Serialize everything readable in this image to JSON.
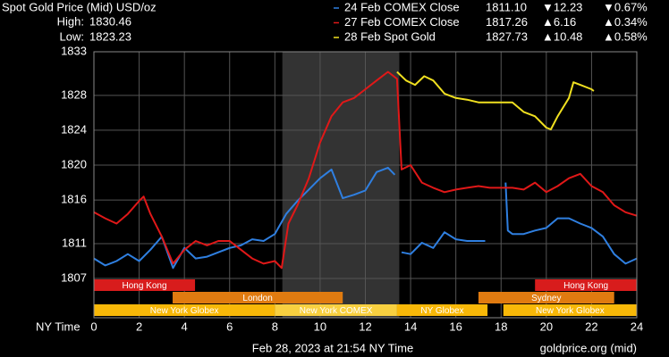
{
  "chart_data": {
    "type": "line",
    "title": "Spot Gold Price (Mid) USD/oz",
    "stats": [
      {
        "label": "High:",
        "value": 1830.46
      },
      {
        "label": "Low:",
        "value": 1823.23
      }
    ],
    "stats_color": "#f0e030",
    "x_label": "NY Time",
    "xlim": [
      0,
      24
    ],
    "xticks": [
      0,
      2,
      4,
      6,
      8,
      10,
      12,
      14,
      16,
      18,
      20,
      22,
      24
    ],
    "ylim": [
      1802.5,
      1833
    ],
    "yticks": [
      1833,
      1828,
      1824,
      1820,
      1816,
      1811,
      1807
    ],
    "grid": true,
    "shaded_range": [
      8.33,
      13.5
    ],
    "session_rows": [
      [
        {
          "label": "Hong Kong",
          "color": "#d81c1c",
          "label_color": "#f4b0b0",
          "start": 0,
          "end": 4.47
        },
        {
          "label": "Hong Kong",
          "color": "#d81c1c",
          "label_color": "#f4b0b0",
          "start": 19.5,
          "end": 24
        }
      ],
      [
        {
          "label": "London",
          "color": "#e07b10",
          "label_color": "#5a2a00",
          "start": 3.48,
          "end": 11.0
        },
        {
          "label": "Sydney",
          "color": "#e07b10",
          "label_color": "#5a2a00",
          "start": 17.0,
          "end": 23.0
        }
      ],
      [
        {
          "label": "New York Globex",
          "color": "#f8b808",
          "label_color": "#5a3000",
          "start": 0,
          "end": 8.0
        },
        {
          "label": "New York COMEX",
          "color": "#f8d040",
          "label_color": "#5a3000",
          "start": 8.0,
          "end": 13.4
        },
        {
          "label": "NY Globex",
          "color": "#f8b808",
          "label_color": "#5a3000",
          "start": 13.4,
          "end": 17.4
        },
        {
          "label": "New York Globex",
          "color": "#f8b808",
          "label_color": "#5a3000",
          "start": 18.1,
          "end": 24
        }
      ]
    ],
    "series": [
      {
        "name": "24 Feb COMEX Close",
        "color": "#2f7fe0",
        "close_label": "1811.10",
        "change_label": "▼12.23",
        "change_pct_label": "▼0.67%",
        "change_color": "#e0201c",
        "x": [
          0,
          0.5,
          1,
          1.5,
          2,
          2.5,
          3,
          3.5,
          4,
          4.5,
          5,
          5.5,
          6,
          6.5,
          7,
          7.5,
          8,
          8.5,
          9,
          9.5,
          10,
          10.5,
          11,
          11.5,
          12,
          12.5,
          13,
          13.3,
          13.5,
          13.6,
          14,
          14.5,
          15,
          15.5,
          16,
          16.5,
          17.3,
          17.7,
          18.2,
          18.3,
          18.5,
          19,
          19.5,
          20,
          20.5,
          21,
          21.5,
          22,
          22.5,
          23,
          23.5,
          24
        ],
        "values": [
          1809.3,
          1808.5,
          1809.0,
          1809.8,
          1809.0,
          1810.3,
          1811.8,
          1808.2,
          1810.5,
          1809.3,
          1809.5,
          1810.0,
          1810.5,
          1810.8,
          1811.5,
          1811.3,
          1812.1,
          1814.4,
          1815.9,
          1817.2,
          1818.5,
          1819.5,
          1816.2,
          1816.6,
          1817.1,
          1819.2,
          1819.7,
          1818.9,
          null,
          1810.0,
          1809.8,
          1811.1,
          1810.5,
          1812.3,
          1811.5,
          1811.3,
          1811.3,
          null,
          1818.0,
          1812.5,
          1812.1,
          1812.1,
          1812.5,
          1812.8,
          1813.9,
          1813.9,
          1813.3,
          1812.8,
          1811.8,
          1809.8,
          1808.7,
          1809.3
        ]
      },
      {
        "name": "27 Feb COMEX Close",
        "color": "#e01818",
        "close_label": "1817.26",
        "change_label": "▲6.16",
        "change_pct_label": "▲0.34%",
        "change_color": "#22c022",
        "x": [
          0,
          0.5,
          1,
          1.5,
          2,
          2.2,
          2.5,
          3,
          3.5,
          4,
          4.5,
          5,
          5.5,
          6,
          6.5,
          7,
          7.5,
          8,
          8.3,
          8.6,
          9,
          9.5,
          10,
          10.5,
          11,
          11.5,
          12,
          12.5,
          13,
          13.4,
          13.6,
          14,
          14.5,
          15,
          15.5,
          16,
          16.5,
          17,
          17.5,
          18,
          18.5,
          19,
          19.5,
          20,
          20.5,
          21,
          21.5,
          22,
          22.5,
          23,
          23.5,
          24
        ],
        "values": [
          1814.6,
          1813.9,
          1813.3,
          1814.4,
          1815.9,
          1816.4,
          1814.4,
          1811.8,
          1808.7,
          1810.3,
          1811.3,
          1810.8,
          1811.3,
          1811.3,
          1810.3,
          1809.3,
          1808.7,
          1809.0,
          1808.2,
          1813.3,
          1815.4,
          1818.5,
          1822.6,
          1825.6,
          1827.2,
          1827.7,
          1828.7,
          1829.7,
          1830.7,
          1829.9,
          1819.5,
          1820.0,
          1818.0,
          1817.4,
          1816.9,
          1817.2,
          1817.4,
          1817.6,
          1817.4,
          1817.4,
          1817.4,
          1817.2,
          1818.0,
          1816.9,
          1817.6,
          1818.5,
          1819.0,
          1817.6,
          1816.9,
          1815.4,
          1814.6,
          1814.2
        ]
      },
      {
        "name": "28 Feb Spot Gold",
        "color": "#f0e020",
        "close_label": "1827.73",
        "change_label": "▲10.48",
        "change_pct_label": "▲0.58%",
        "change_color": "#22c022",
        "x": [
          13.4,
          13.8,
          14.2,
          14.6,
          15,
          15.5,
          16,
          16.5,
          17,
          17.5,
          18,
          18.5,
          19,
          19.5,
          20,
          20.2,
          20.5,
          21,
          21.2,
          21.5,
          22,
          22.1
        ],
        "values": [
          1830.7,
          1829.7,
          1829.2,
          1830.2,
          1829.7,
          1828.2,
          1827.7,
          1827.5,
          1827.2,
          1827.2,
          1827.2,
          1827.2,
          1826.1,
          1825.6,
          1824.3,
          1824.1,
          1825.6,
          1827.7,
          1829.5,
          1829.2,
          1828.7,
          1828.5
        ]
      }
    ],
    "footer": {
      "timestamp": "Feb 28, 2023 at 21:54 NY Time",
      "source": "goldprice.org (mid)"
    }
  }
}
